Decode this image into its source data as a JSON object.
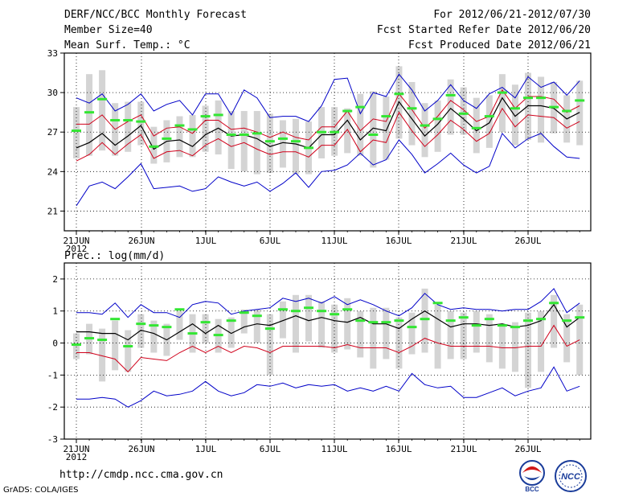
{
  "header": {
    "left": [
      "DERF/NCC/BCC Monthly Forecast",
      "Member Size=40",
      "Mean Surf. Temp.: °C"
    ],
    "right": [
      "For 2012/06/21-2012/07/30",
      "Fcst Started Refer Date 2012/06/20",
      "Fcst Produced Date 2012/06/21"
    ]
  },
  "colors": {
    "ens_max": "#0000c8",
    "ens_min": "#0000c8",
    "std_upper": "#d0001a",
    "std_lower": "#d0001a",
    "ens_mean": "#000000",
    "median": "#33e633",
    "bar": "#d4d4d4"
  },
  "chart_data": [
    {
      "type": "line",
      "title": "Mean Surf. Temp.: °C",
      "ylim": [
        19.5,
        33
      ],
      "yticks": [
        21,
        24,
        27,
        30,
        33
      ],
      "xticks": [
        "21JUN\n2012",
        "26JUN",
        "1JUL",
        "6JUL",
        "11JUL",
        "16JUL",
        "21JUL",
        "26JUL"
      ],
      "x": [
        1,
        2,
        3,
        4,
        5,
        6,
        7,
        8,
        9,
        10,
        11,
        12,
        13,
        14,
        15,
        16,
        17,
        18,
        19,
        20,
        21,
        22,
        23,
        24,
        25,
        26,
        27,
        28,
        29,
        30,
        31,
        32,
        33,
        34,
        35,
        36,
        37,
        38,
        39,
        40
      ],
      "series": [
        {
          "name": "ens_max",
          "values": [
            29.6,
            29.2,
            29.9,
            28.6,
            29.1,
            29.9,
            28.6,
            29.1,
            29.4,
            28.3,
            29.9,
            29.9,
            28.3,
            30.2,
            29.6,
            28.1,
            28.2,
            28.2,
            27.8,
            29.0,
            31.0,
            31.1,
            28.4,
            30.0,
            29.7,
            31.4,
            30.2,
            28.6,
            29.4,
            30.6,
            29.4,
            28.8,
            29.9,
            30.4,
            29.6,
            31.2,
            30.4,
            30.8,
            29.8,
            30.9
          ]
        },
        {
          "name": "std_upper",
          "values": [
            27.6,
            27.6,
            28.3,
            27.2,
            27.8,
            28.3,
            26.7,
            27.3,
            27.4,
            26.9,
            27.9,
            27.9,
            27.2,
            27.3,
            27.0,
            26.6,
            27.0,
            26.6,
            26.4,
            27.4,
            27.4,
            28.6,
            27.1,
            28.0,
            27.8,
            29.9,
            28.7,
            27.3,
            28.2,
            29.4,
            28.7,
            27.8,
            28.2,
            30.2,
            28.8,
            29.7,
            29.7,
            29.5,
            28.5,
            29.0
          ]
        },
        {
          "name": "ens_mean",
          "values": [
            25.8,
            26.2,
            26.9,
            26.0,
            26.7,
            27.5,
            25.7,
            26.3,
            26.4,
            25.9,
            26.8,
            27.3,
            26.7,
            26.8,
            26.5,
            25.9,
            26.2,
            26.1,
            25.8,
            26.8,
            26.8,
            27.9,
            26.4,
            27.3,
            27.1,
            29.3,
            28.0,
            26.7,
            27.6,
            28.8,
            28.0,
            27.1,
            27.7,
            29.6,
            28.2,
            29.0,
            29.0,
            28.8,
            28.0,
            28.5
          ]
        },
        {
          "name": "std_lower",
          "values": [
            24.8,
            25.3,
            26.2,
            25.3,
            26.1,
            26.8,
            25.0,
            25.5,
            25.6,
            25.2,
            26.0,
            26.5,
            25.9,
            26.2,
            25.7,
            25.3,
            25.5,
            25.5,
            25.1,
            26.0,
            26.0,
            27.2,
            25.5,
            26.4,
            26.2,
            28.5,
            27.1,
            25.9,
            26.8,
            27.9,
            27.2,
            26.3,
            26.9,
            28.8,
            27.4,
            28.3,
            28.2,
            28.1,
            27.3,
            27.8
          ]
        },
        {
          "name": "ens_min",
          "values": [
            21.4,
            22.9,
            23.2,
            22.7,
            23.6,
            24.6,
            22.7,
            22.8,
            22.9,
            22.5,
            22.7,
            23.6,
            23.2,
            22.9,
            23.2,
            22.5,
            23.1,
            23.9,
            22.8,
            24.0,
            24.1,
            24.5,
            25.4,
            24.5,
            24.9,
            26.4,
            25.3,
            23.9,
            24.6,
            25.4,
            24.5,
            23.9,
            24.4,
            26.9,
            25.8,
            26.5,
            26.9,
            25.9,
            25.1,
            25.0
          ]
        },
        {
          "name": "median",
          "values": [
            27.1,
            28.5,
            29.5,
            27.9,
            27.9,
            27.8,
            25.9,
            26.5,
            27.5,
            27.2,
            28.2,
            28.3,
            26.8,
            26.8,
            26.9,
            26.3,
            26.5,
            26.3,
            25.8,
            27.0,
            27.0,
            28.6,
            28.9,
            26.8,
            28.2,
            29.9,
            28.8,
            27.5,
            28.0,
            29.8,
            28.4,
            27.3,
            28.2,
            30.0,
            28.8,
            29.6,
            29.6,
            28.9,
            28.6,
            29.4
          ]
        }
      ],
      "bars": [
        [
          25.0,
          28.9
        ],
        [
          25.2,
          31.4
        ],
        [
          25.6,
          31.7
        ],
        [
          25.2,
          29.2
        ],
        [
          25.5,
          29.3
        ],
        [
          26.0,
          29.3
        ],
        [
          24.6,
          27.4
        ],
        [
          24.7,
          27.9
        ],
        [
          25.1,
          28.2
        ],
        [
          25.1,
          28.3
        ],
        [
          25.5,
          29.0
        ],
        [
          25.3,
          29.4
        ],
        [
          24.2,
          28.6
        ],
        [
          24.0,
          28.6
        ],
        [
          23.8,
          28.6
        ],
        [
          23.9,
          28.4
        ],
        [
          24.3,
          27.9
        ],
        [
          23.8,
          28.0
        ],
        [
          23.8,
          27.8
        ],
        [
          25.0,
          28.9
        ],
        [
          25.2,
          28.9
        ],
        [
          25.4,
          28.8
        ],
        [
          25.2,
          29.9
        ],
        [
          24.3,
          30.1
        ],
        [
          24.9,
          29.7
        ],
        [
          26.5,
          32.0
        ],
        [
          26.0,
          30.8
        ],
        [
          25.1,
          29.2
        ],
        [
          25.5,
          29.4
        ],
        [
          26.8,
          31.0
        ],
        [
          26.8,
          30.4
        ],
        [
          25.4,
          29.6
        ],
        [
          25.8,
          29.8
        ],
        [
          27.0,
          31.4
        ],
        [
          26.0,
          30.6
        ],
        [
          26.4,
          31.5
        ],
        [
          26.2,
          31.2
        ],
        [
          26.9,
          30.8
        ],
        [
          26.2,
          29.8
        ],
        [
          26.0,
          30.9
        ]
      ]
    },
    {
      "type": "line",
      "title": "Prec.: log(mm/d)",
      "ylim": [
        -3,
        2.5
      ],
      "yticks": [
        -3,
        -2,
        -1,
        0,
        1,
        2
      ],
      "xticks": [
        "21JUN\n2012",
        "26JUN",
        "1JUL",
        "6JUL",
        "11JUL",
        "16JUL",
        "21JUL",
        "26JUL"
      ],
      "x": [
        1,
        2,
        3,
        4,
        5,
        6,
        7,
        8,
        9,
        10,
        11,
        12,
        13,
        14,
        15,
        16,
        17,
        18,
        19,
        20,
        21,
        22,
        23,
        24,
        25,
        26,
        27,
        28,
        29,
        30,
        31,
        32,
        33,
        34,
        35,
        36,
        37,
        38,
        39,
        40
      ],
      "series": [
        {
          "name": "ens_max",
          "values": [
            0.95,
            0.95,
            0.9,
            1.25,
            0.8,
            1.2,
            0.95,
            0.95,
            0.8,
            1.2,
            1.3,
            1.25,
            0.9,
            1.0,
            1.05,
            1.1,
            1.4,
            1.3,
            1.4,
            1.25,
            1.45,
            1.2,
            1.35,
            1.2,
            1.0,
            0.85,
            1.1,
            1.55,
            1.2,
            1.05,
            1.1,
            1.05,
            1.05,
            1.0,
            1.05,
            1.05,
            1.3,
            1.7,
            0.95,
            1.25
          ]
        },
        {
          "name": "ens_mean",
          "values": [
            0.35,
            0.35,
            0.3,
            0.3,
            0.1,
            0.4,
            0.3,
            0.1,
            0.35,
            0.6,
            0.3,
            0.55,
            0.3,
            0.5,
            0.6,
            0.55,
            0.7,
            0.85,
            0.7,
            0.8,
            0.7,
            0.65,
            0.8,
            0.6,
            0.6,
            0.45,
            0.75,
            1.0,
            0.75,
            0.5,
            0.6,
            0.6,
            0.55,
            0.6,
            0.5,
            0.55,
            0.7,
            1.2,
            0.5,
            0.8
          ]
        },
        {
          "name": "std_lower",
          "values": [
            -0.3,
            -0.3,
            -0.4,
            -0.5,
            -0.9,
            -0.45,
            -0.5,
            -0.55,
            -0.3,
            -0.1,
            -0.3,
            -0.1,
            -0.3,
            -0.1,
            -0.15,
            -0.3,
            -0.1,
            -0.1,
            -0.1,
            -0.1,
            -0.15,
            -0.05,
            -0.15,
            -0.15,
            -0.15,
            -0.3,
            -0.1,
            0.15,
            0.0,
            -0.1,
            -0.1,
            -0.1,
            -0.1,
            -0.15,
            -0.15,
            -0.1,
            -0.1,
            0.55,
            -0.1,
            0.1
          ]
        },
        {
          "name": "ens_min",
          "values": [
            -1.75,
            -1.75,
            -1.7,
            -1.75,
            -2.0,
            -1.8,
            -1.5,
            -1.65,
            -1.6,
            -1.5,
            -1.2,
            -1.5,
            -1.65,
            -1.55,
            -1.3,
            -1.35,
            -1.25,
            -1.4,
            -1.3,
            -1.35,
            -1.3,
            -1.5,
            -1.4,
            -1.5,
            -1.35,
            -1.5,
            -0.95,
            -1.3,
            -1.4,
            -1.35,
            -1.7,
            -1.7,
            -1.55,
            -1.4,
            -1.65,
            -1.5,
            -1.4,
            -0.75,
            -1.5,
            -1.35
          ]
        },
        {
          "name": "median",
          "values": [
            -0.05,
            0.15,
            0.1,
            0.75,
            -0.1,
            0.6,
            0.55,
            0.5,
            1.05,
            0.3,
            0.65,
            0.25,
            0.7,
            0.95,
            0.85,
            0.45,
            1.05,
            1.0,
            1.1,
            1.0,
            0.9,
            1.05,
            0.7,
            0.65,
            0.65,
            0.7,
            0.5,
            0.75,
            1.25,
            0.7,
            0.8,
            0.55,
            0.75,
            0.55,
            0.5,
            0.7,
            0.75,
            1.25,
            0.7,
            0.8
          ]
        }
      ],
      "bars": [
        [
          -0.5,
          0.3
        ],
        [
          -0.35,
          0.6
        ],
        [
          -1.2,
          0.45
        ],
        [
          -0.85,
          0.7
        ],
        [
          -0.9,
          0.4
        ],
        [
          -0.15,
          0.9
        ],
        [
          -0.3,
          0.7
        ],
        [
          -0.4,
          0.6
        ],
        [
          0.1,
          1.0
        ],
        [
          -0.3,
          0.9
        ],
        [
          0.0,
          0.9
        ],
        [
          -0.3,
          0.75
        ],
        [
          -0.15,
          0.8
        ],
        [
          0.3,
          1.05
        ],
        [
          0.0,
          1.05
        ],
        [
          -1.0,
          0.9
        ],
        [
          0.15,
          1.3
        ],
        [
          -0.3,
          1.5
        ],
        [
          0.05,
          1.5
        ],
        [
          -0.15,
          1.3
        ],
        [
          -0.3,
          1.2
        ],
        [
          -0.2,
          1.4
        ],
        [
          -0.45,
          1.0
        ],
        [
          -0.8,
          1.1
        ],
        [
          -0.5,
          1.1
        ],
        [
          -0.8,
          0.8
        ],
        [
          -0.35,
          0.95
        ],
        [
          -0.3,
          1.7
        ],
        [
          -0.8,
          1.2
        ],
        [
          -0.5,
          1.0
        ],
        [
          -0.5,
          0.95
        ],
        [
          -0.3,
          1.0
        ],
        [
          -0.6,
          0.9
        ],
        [
          -0.8,
          0.6
        ],
        [
          -0.9,
          0.65
        ],
        [
          -1.4,
          0.95
        ],
        [
          -0.9,
          1.0
        ],
        [
          -0.15,
          1.5
        ],
        [
          -0.6,
          0.9
        ],
        [
          -1.0,
          1.2
        ]
      ]
    }
  ],
  "footer": {
    "url": "http://cmdp.ncc.cma.gov.cn",
    "credit": "GrADS: COLA/IGES",
    "logo_left": "BCC",
    "logo_right": "NCC"
  }
}
